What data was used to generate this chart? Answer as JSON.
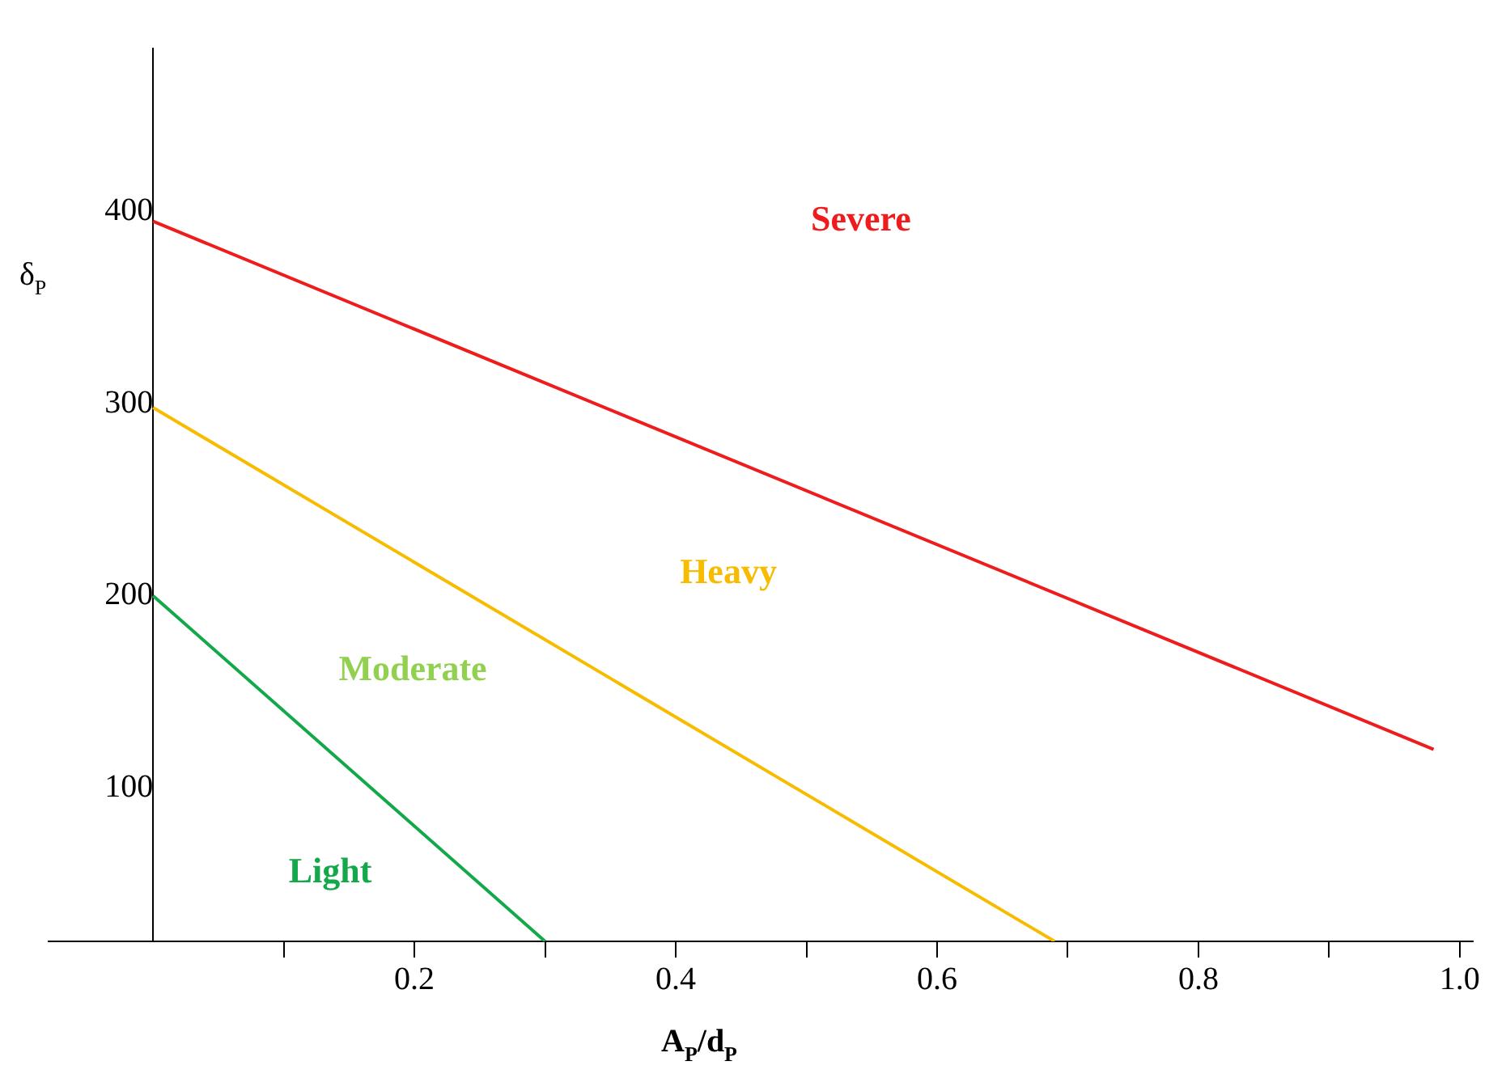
{
  "chart_data": {
    "type": "line",
    "xlabel": "A$_{P}$/d$_{P}$",
    "ylabel": "δ$_{P}$",
    "xlim": [
      -0.08,
      1.01
    ],
    "ylim": [
      20,
      485
    ],
    "xticks": [
      {
        "value": 0.1,
        "label": null
      },
      0.2,
      {
        "value": 0.3,
        "label": null
      },
      0.4,
      {
        "value": 0.5,
        "label": null
      },
      0.6,
      {
        "value": 0.7,
        "label": null
      },
      0.8,
      {
        "value": 0.9,
        "label": null
      },
      "1.0"
    ],
    "yticks": [
      100,
      200,
      300,
      400
    ],
    "legend": false,
    "marker": "none",
    "line_style": "solid",
    "series": [
      {
        "color": "#ee1c1c",
        "x": [
          0,
          0.98
        ],
        "values": [
          395,
          120
        ]
      },
      {
        "color": "#f7bb00",
        "x": [
          0,
          0.69
        ],
        "values": [
          298,
          20
        ]
      },
      {
        "color": "#13a84a",
        "x": [
          0,
          0.3
        ],
        "values": [
          200,
          20
        ]
      }
    ],
    "annotations": [
      "Severe",
      "Heavy",
      "Moderate",
      "Light"
    ]
  }
}
